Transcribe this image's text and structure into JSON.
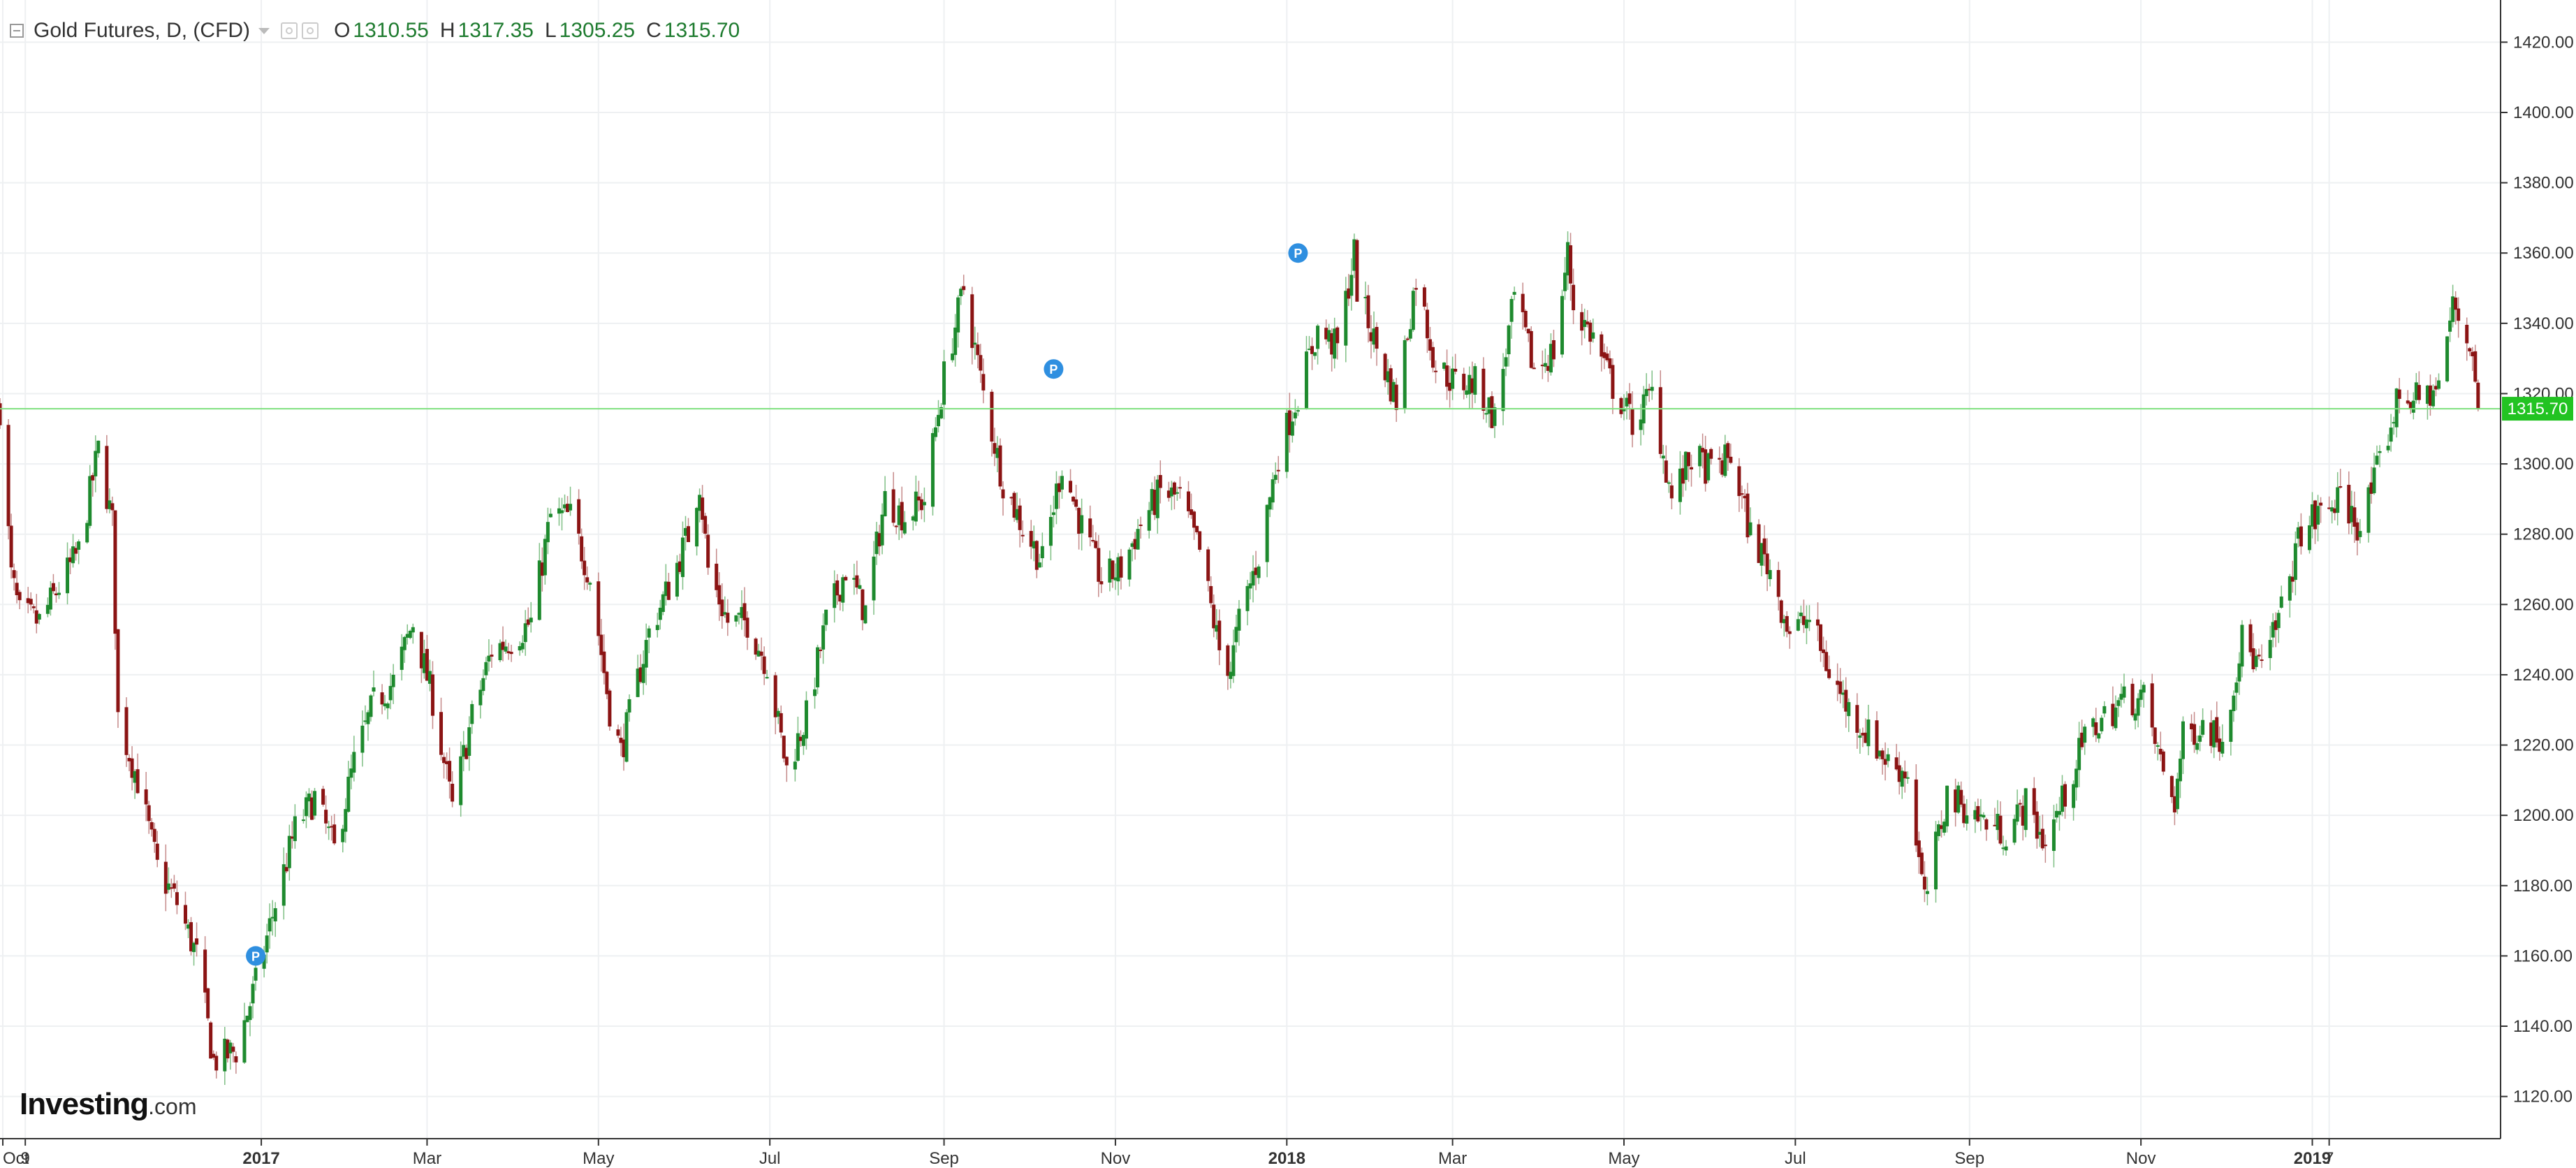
{
  "legend": {
    "title": "Gold Futures, D, (CFD)",
    "open_label": "O",
    "open_value": "1310.55",
    "high_label": "H",
    "high_value": "1317.35",
    "low_label": "L",
    "low_value": "1305.25",
    "close_label": "C",
    "close_value": "1315.70"
  },
  "watermark": {
    "brand": "Investing",
    "suffix": ".com"
  },
  "current_price_label": "1315.70",
  "colors": {
    "up": "#1e8a2e",
    "down": "#8b1414",
    "price_line": "#7fe07f",
    "price_tag": "#22c322",
    "marker": "#2f8fe0"
  },
  "chart_data": {
    "type": "candlestick",
    "title": "Gold Futures, D, (CFD)",
    "ylim": [
      1108,
      1432
    ],
    "y_ticks": [
      "1120.00",
      "1140.00",
      "1160.00",
      "1180.00",
      "1200.00",
      "1220.00",
      "1240.00",
      "1260.00",
      "1280.00",
      "1300.00",
      "1320.00",
      "1340.00",
      "1360.00",
      "1380.00",
      "1400.00",
      "1420.00"
    ],
    "x_ticks": [
      {
        "label": "Oct",
        "date": "2016-10-01"
      },
      {
        "label": "9",
        "date": "2016-10-09"
      },
      {
        "label": "2017",
        "date": "2017-01-01"
      },
      {
        "label": "Mar",
        "date": "2017-03-01"
      },
      {
        "label": "May",
        "date": "2017-05-01"
      },
      {
        "label": "Jul",
        "date": "2017-07-01"
      },
      {
        "label": "Sep",
        "date": "2017-09-01"
      },
      {
        "label": "Nov",
        "date": "2017-11-01"
      },
      {
        "label": "2018",
        "date": "2018-01-01"
      },
      {
        "label": "Mar",
        "date": "2018-03-01"
      },
      {
        "label": "May",
        "date": "2018-05-01"
      },
      {
        "label": "Jul",
        "date": "2018-07-01"
      },
      {
        "label": "Sep",
        "date": "2018-09-01"
      },
      {
        "label": "Nov",
        "date": "2018-11-01"
      },
      {
        "label": "2019",
        "date": "2019-01-01"
      },
      {
        "label": "7",
        "date": "2019-01-07"
      }
    ],
    "current_price": 1315.7,
    "approximate_close_path": [
      [
        "2016-09-30",
        1316
      ],
      [
        "2016-10-04",
        1268
      ],
      [
        "2016-10-07",
        1257
      ],
      [
        "2016-10-14",
        1255
      ],
      [
        "2016-10-21",
        1265
      ],
      [
        "2016-10-28",
        1275
      ],
      [
        "2016-11-04",
        1304
      ],
      [
        "2016-11-09",
        1283
      ],
      [
        "2016-11-11",
        1228
      ],
      [
        "2016-11-18",
        1210
      ],
      [
        "2016-11-25",
        1185
      ],
      [
        "2016-12-02",
        1175
      ],
      [
        "2016-12-09",
        1160
      ],
      [
        "2016-12-15",
        1130
      ],
      [
        "2016-12-23",
        1133
      ],
      [
        "2016-12-30",
        1152
      ],
      [
        "2017-01-06",
        1175
      ],
      [
        "2017-01-13",
        1196
      ],
      [
        "2017-01-20",
        1205
      ],
      [
        "2017-01-27",
        1190
      ],
      [
        "2017-02-03",
        1215
      ],
      [
        "2017-02-10",
        1232
      ],
      [
        "2017-02-17",
        1238
      ],
      [
        "2017-02-24",
        1255
      ],
      [
        "2017-03-03",
        1233
      ],
      [
        "2017-03-10",
        1202
      ],
      [
        "2017-03-17",
        1228
      ],
      [
        "2017-03-24",
        1247
      ],
      [
        "2017-03-31",
        1250
      ],
      [
        "2017-04-07",
        1255
      ],
      [
        "2017-04-14",
        1285
      ],
      [
        "2017-04-21",
        1285
      ],
      [
        "2017-04-28",
        1268
      ],
      [
        "2017-05-05",
        1230
      ],
      [
        "2017-05-09",
        1218
      ],
      [
        "2017-05-19",
        1252
      ],
      [
        "2017-05-26",
        1265
      ],
      [
        "2017-06-02",
        1280
      ],
      [
        "2017-06-06",
        1295
      ],
      [
        "2017-06-09",
        1270
      ],
      [
        "2017-06-16",
        1255
      ],
      [
        "2017-06-23",
        1255
      ],
      [
        "2017-06-30",
        1243
      ],
      [
        "2017-07-07",
        1213
      ],
      [
        "2017-07-14",
        1228
      ],
      [
        "2017-07-21",
        1255
      ],
      [
        "2017-07-28",
        1270
      ],
      [
        "2017-08-04",
        1258
      ],
      [
        "2017-08-11",
        1290
      ],
      [
        "2017-08-18",
        1285
      ],
      [
        "2017-08-25",
        1290
      ],
      [
        "2017-09-01",
        1325
      ],
      [
        "2017-09-08",
        1350
      ],
      [
        "2017-09-15",
        1320
      ],
      [
        "2017-09-22",
        1295
      ],
      [
        "2017-09-29",
        1282
      ],
      [
        "2017-10-06",
        1272
      ],
      [
        "2017-10-13",
        1300
      ],
      [
        "2017-10-20",
        1282
      ],
      [
        "2017-10-27",
        1267
      ],
      [
        "2017-11-03",
        1270
      ],
      [
        "2017-11-10",
        1283
      ],
      [
        "2017-11-17",
        1292
      ],
      [
        "2017-11-24",
        1290
      ],
      [
        "2017-12-01",
        1275
      ],
      [
        "2017-12-08",
        1247
      ],
      [
        "2017-12-12",
        1242
      ],
      [
        "2017-12-15",
        1255
      ],
      [
        "2017-12-22",
        1274
      ],
      [
        "2017-12-29",
        1303
      ],
      [
        "2018-01-05",
        1320
      ],
      [
        "2018-01-12",
        1338
      ],
      [
        "2018-01-19",
        1333
      ],
      [
        "2018-01-25",
        1360
      ],
      [
        "2018-01-26",
        1350
      ],
      [
        "2018-02-02",
        1333
      ],
      [
        "2018-02-09",
        1318
      ],
      [
        "2018-02-16",
        1353
      ],
      [
        "2018-02-23",
        1328
      ],
      [
        "2018-03-02",
        1323
      ],
      [
        "2018-03-09",
        1323
      ],
      [
        "2018-03-16",
        1313
      ],
      [
        "2018-03-23",
        1347
      ],
      [
        "2018-03-30",
        1327
      ],
      [
        "2018-04-06",
        1332
      ],
      [
        "2018-04-11",
        1360
      ],
      [
        "2018-04-13",
        1345
      ],
      [
        "2018-04-20",
        1336
      ],
      [
        "2018-04-27",
        1322
      ],
      [
        "2018-05-04",
        1312
      ],
      [
        "2018-05-11",
        1320
      ],
      [
        "2018-05-18",
        1290
      ],
      [
        "2018-05-25",
        1302
      ],
      [
        "2018-06-01",
        1298
      ],
      [
        "2018-06-08",
        1302
      ],
      [
        "2018-06-15",
        1280
      ],
      [
        "2018-06-22",
        1270
      ],
      [
        "2018-06-29",
        1252
      ],
      [
        "2018-07-06",
        1256
      ],
      [
        "2018-07-13",
        1241
      ],
      [
        "2018-07-20",
        1230
      ],
      [
        "2018-07-27",
        1223
      ],
      [
        "2018-08-03",
        1215
      ],
      [
        "2018-08-10",
        1212
      ],
      [
        "2018-08-16",
        1175
      ],
      [
        "2018-08-24",
        1206
      ],
      [
        "2018-08-31",
        1202
      ],
      [
        "2018-09-07",
        1198
      ],
      [
        "2018-09-14",
        1195
      ],
      [
        "2018-09-21",
        1203
      ],
      [
        "2018-09-28",
        1192
      ],
      [
        "2018-10-05",
        1206
      ],
      [
        "2018-10-12",
        1222
      ],
      [
        "2018-10-19",
        1228
      ],
      [
        "2018-10-26",
        1233
      ],
      [
        "2018-11-02",
        1233
      ],
      [
        "2018-11-09",
        1212
      ],
      [
        "2018-11-13",
        1204
      ],
      [
        "2018-11-16",
        1222
      ],
      [
        "2018-11-23",
        1226
      ],
      [
        "2018-11-30",
        1222
      ],
      [
        "2018-12-07",
        1250
      ],
      [
        "2018-12-14",
        1241
      ],
      [
        "2018-12-21",
        1258
      ],
      [
        "2018-12-28",
        1281
      ],
      [
        "2019-01-04",
        1286
      ],
      [
        "2019-01-11",
        1290
      ],
      [
        "2019-01-18",
        1282
      ],
      [
        "2019-01-25",
        1300
      ],
      [
        "2019-02-01",
        1320
      ],
      [
        "2019-02-08",
        1318
      ],
      [
        "2019-02-15",
        1322
      ],
      [
        "2019-02-20",
        1345
      ],
      [
        "2019-02-27",
        1332
      ],
      [
        "2019-03-01",
        1315.7
      ]
    ],
    "markers": [
      {
        "label": "P",
        "date": "2016-12-30",
        "price": 1160
      },
      {
        "label": "P",
        "date": "2017-10-10",
        "price": 1327
      },
      {
        "label": "P",
        "date": "2018-01-05",
        "price": 1360
      }
    ]
  }
}
